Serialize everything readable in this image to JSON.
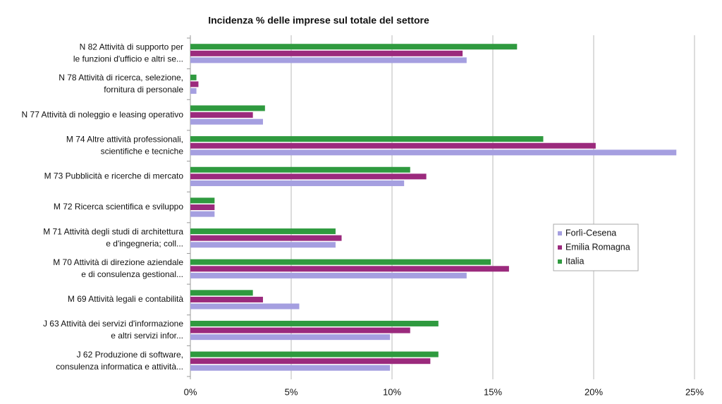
{
  "chart_data": {
    "type": "hbar",
    "title": "Incidenza % delle imprese sul totale del settore",
    "categories": [
      [
        "N 82 Attività di supporto per",
        "le funzioni d'ufficio e altri se..."
      ],
      [
        "N 78 Attività di ricerca, selezione,",
        "fornitura di personale"
      ],
      [
        "N 77 Attività di noleggio e leasing operativo"
      ],
      [
        "M 74 Altre attività professionali,",
        "scientifiche e tecniche"
      ],
      [
        "M 73 Pubblicità e ricerche di mercato"
      ],
      [
        "M 72 Ricerca scientifica e sviluppo"
      ],
      [
        "M 71 Attività degli studi di architettura",
        "e d'ingegneria; coll..."
      ],
      [
        "M 70 Attività di direzione aziendale",
        "e di consulenza gestional..."
      ],
      [
        "M 69 Attività legali e contabilità"
      ],
      [
        "J 63 Attività dei servizi d'informazione",
        "e altri servizi infor..."
      ],
      [
        "J 62 Produzione di software,",
        "consulenza informatica e attività..."
      ]
    ],
    "series": [
      {
        "name": "Forlì-Cesena",
        "color": "#a59fe0",
        "values": [
          13.7,
          0.3,
          3.6,
          24.1,
          10.6,
          1.2,
          7.2,
          13.7,
          5.4,
          9.9,
          9.9
        ]
      },
      {
        "name": "Emilia Romagna",
        "color": "#9b2a7d",
        "values": [
          13.5,
          0.4,
          3.1,
          20.1,
          11.7,
          1.2,
          7.5,
          15.8,
          3.6,
          10.9,
          11.9
        ]
      },
      {
        "name": "Italia",
        "color": "#2f9a3f",
        "values": [
          16.2,
          0.3,
          3.7,
          17.5,
          10.9,
          1.2,
          7.2,
          14.9,
          3.1,
          12.3,
          12.3
        ]
      }
    ],
    "xlim": [
      0,
      25
    ],
    "xticks": [
      {
        "value": 0,
        "label": "0%"
      },
      {
        "value": 5,
        "label": "5%"
      },
      {
        "value": 10,
        "label": "10%"
      },
      {
        "value": 15,
        "label": "15%"
      },
      {
        "value": 20,
        "label": "20%"
      },
      {
        "value": 25,
        "label": "25%"
      }
    ],
    "grid": true,
    "legend": "right"
  }
}
